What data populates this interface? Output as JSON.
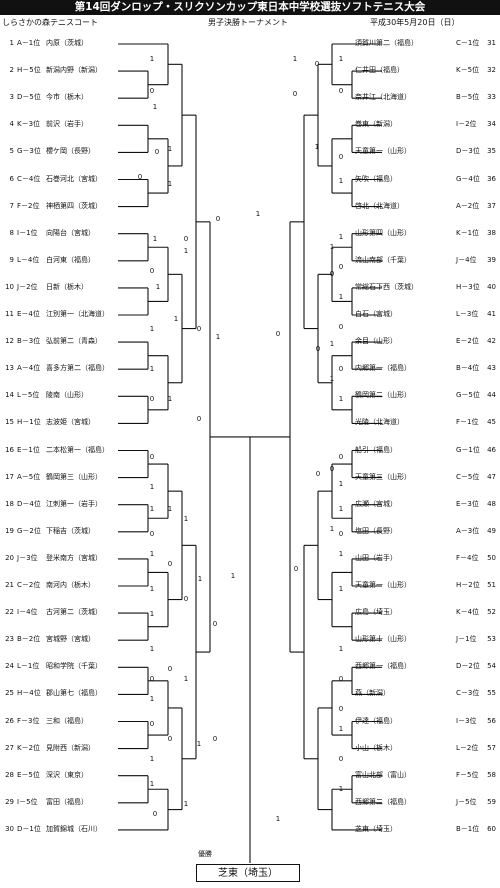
{
  "header": {
    "title": "第14回ダンロップ・スリクソンカップ東日本中学校選抜ソフトテニス大会",
    "venue": "しらさかの森テニスコート",
    "event": "男子決勝トーナメント",
    "date": "平成30年5月20日（日）"
  },
  "left_entries": [
    {
      "no": "1",
      "seed": "A－1位",
      "name": "内原（茨城）"
    },
    {
      "no": "2",
      "seed": "H－5位",
      "name": "新潟内野（新潟）"
    },
    {
      "no": "3",
      "seed": "D－5位",
      "name": "今市（栃木）"
    },
    {
      "no": "4",
      "seed": "K－3位",
      "name": "前沢（岩手）"
    },
    {
      "no": "5",
      "seed": "G－3位",
      "name": "櫻ケ岡（長野）"
    },
    {
      "no": "6",
      "seed": "C－4位",
      "name": "石巻河北（宮城）"
    },
    {
      "no": "7",
      "seed": "F－2位",
      "name": "神栖第四（茨城）"
    },
    {
      "no": "8",
      "seed": "I－1位",
      "name": "向陽台（宮城）"
    },
    {
      "no": "9",
      "seed": "L－4位",
      "name": "白河東（福島）"
    },
    {
      "no": "10",
      "seed": "J－2位",
      "name": "日新（栃木）"
    },
    {
      "no": "11",
      "seed": "E－4位",
      "name": "江別第一（北海道）"
    },
    {
      "no": "12",
      "seed": "B－3位",
      "name": "弘前第二（青森）"
    },
    {
      "no": "13",
      "seed": "A－4位",
      "name": "喜多方第二（福島）"
    },
    {
      "no": "14",
      "seed": "L－5位",
      "name": "陵南（山形）"
    },
    {
      "no": "15",
      "seed": "H－1位",
      "name": "志波姫（宮城）"
    },
    {
      "no": "16",
      "seed": "E－1位",
      "name": "二本松第一（福島）"
    },
    {
      "no": "17",
      "seed": "A－5位",
      "name": "鶴岡第三（山形）"
    },
    {
      "no": "18",
      "seed": "D－4位",
      "name": "江刺第一（岩手）"
    },
    {
      "no": "19",
      "seed": "G－2位",
      "name": "下稲吉（茨城）"
    },
    {
      "no": "20",
      "seed": "J－3位",
      "name": "登米南方（宮城）"
    },
    {
      "no": "21",
      "seed": "C－2位",
      "name": "南河内（栃木）"
    },
    {
      "no": "22",
      "seed": "I－4位",
      "name": "古河第二（茨城）"
    },
    {
      "no": "23",
      "seed": "B－2位",
      "name": "宮城野（宮城）"
    },
    {
      "no": "24",
      "seed": "L－1位",
      "name": "昭和学院（千葉）"
    },
    {
      "no": "25",
      "seed": "H－4位",
      "name": "郡山第七（福島）"
    },
    {
      "no": "26",
      "seed": "F－3位",
      "name": "三和（福島）"
    },
    {
      "no": "27",
      "seed": "K－2位",
      "name": "見附西（新潟）"
    },
    {
      "no": "28",
      "seed": "E－5位",
      "name": "深沢（東京）"
    },
    {
      "no": "29",
      "seed": "I－5位",
      "name": "富田（福島）"
    },
    {
      "no": "30",
      "seed": "D－1位",
      "name": "加賀錦城（石川）"
    }
  ],
  "right_entries": [
    {
      "no": "31",
      "seed": "C－1位",
      "name": "須賀川第二（福島）"
    },
    {
      "no": "32",
      "seed": "K－5位",
      "name": "仁井田（福島）"
    },
    {
      "no": "33",
      "seed": "B－5位",
      "name": "奈井江（北海道）"
    },
    {
      "no": "34",
      "seed": "I－2位",
      "name": "巻東（新潟）"
    },
    {
      "no": "35",
      "seed": "D－3位",
      "name": "天童第一（山形）"
    },
    {
      "no": "36",
      "seed": "G－4位",
      "name": "矢吹（福島）"
    },
    {
      "no": "37",
      "seed": "A－2位",
      "name": "啓北（北海道）"
    },
    {
      "no": "38",
      "seed": "K－1位",
      "name": "山形第四（山形）"
    },
    {
      "no": "39",
      "seed": "J－4位",
      "name": "流山南部（千葉）"
    },
    {
      "no": "40",
      "seed": "H－3位",
      "name": "常総石下西（茨城）"
    },
    {
      "no": "41",
      "seed": "L－3位",
      "name": "白石（宮城）"
    },
    {
      "no": "42",
      "seed": "E－2位",
      "name": "余目（山形）"
    },
    {
      "no": "43",
      "seed": "B－4位",
      "name": "内郷第一（福島）"
    },
    {
      "no": "44",
      "seed": "G－5位",
      "name": "鶴岡第二（山形）"
    },
    {
      "no": "45",
      "seed": "F－1位",
      "name": "光陵（北海道）"
    },
    {
      "no": "46",
      "seed": "G－1位",
      "name": "船引（福島）"
    },
    {
      "no": "47",
      "seed": "C－5位",
      "name": "天童第三（山形）"
    },
    {
      "no": "48",
      "seed": "E－3位",
      "name": "広瀬（宮城）"
    },
    {
      "no": "49",
      "seed": "A－3位",
      "name": "塩田（長野）"
    },
    {
      "no": "50",
      "seed": "F－4位",
      "name": "山田（岩手）"
    },
    {
      "no": "51",
      "seed": "H－2位",
      "name": "天童第一（山形）"
    },
    {
      "no": "52",
      "seed": "K－4位",
      "name": "広島（埼玉）"
    },
    {
      "no": "53",
      "seed": "J－1位",
      "name": "山形第十（山形）"
    },
    {
      "no": "54",
      "seed": "D－2位",
      "name": "西郷第一（福島）"
    },
    {
      "no": "55",
      "seed": "C－3位",
      "name": "燕（新潟）"
    },
    {
      "no": "56",
      "seed": "I－3位",
      "name": "伊達（福島）"
    },
    {
      "no": "57",
      "seed": "L－2位",
      "name": "小山（栃木）"
    },
    {
      "no": "58",
      "seed": "F－5位",
      "name": "富山北部（富山）"
    },
    {
      "no": "59",
      "seed": "J－5位",
      "name": "西郷第二（福島）"
    },
    {
      "no": "60",
      "seed": "B－1位",
      "name": "芝東（埼玉）"
    }
  ],
  "champion_label": "優勝",
  "champion": "芝東（埼玉）",
  "scores": [
    "1",
    "0",
    "1",
    "0",
    "1",
    "1",
    "0",
    "0",
    "1",
    "1",
    "0",
    "1",
    "1",
    "1",
    "0",
    "1",
    "1",
    "0",
    "0",
    "0",
    "1",
    "0",
    "1",
    "1",
    "0",
    "1",
    "1",
    "1",
    "1",
    "0",
    "1",
    "0",
    "1",
    "0",
    "1",
    "1",
    "0",
    "1",
    "0",
    "1",
    "1",
    "0",
    "0",
    "1",
    "1",
    "0",
    "1",
    "0",
    "1",
    "0",
    "1",
    "0",
    "1",
    "0",
    "0",
    "1",
    "1",
    "0",
    "0",
    "1",
    "0",
    "1",
    "1",
    "0",
    "1",
    "0",
    "0",
    "1",
    "1",
    "1",
    "0",
    "0",
    "0",
    "1",
    "1",
    "0",
    "1",
    "1",
    "0",
    "1",
    "1",
    "0",
    "0",
    "1",
    "0",
    "1",
    "1",
    "0"
  ]
}
